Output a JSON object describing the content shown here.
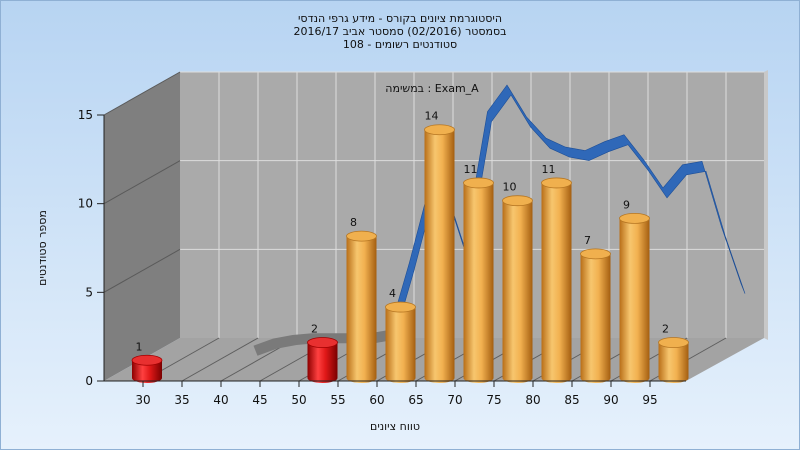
{
  "chart_data": {
    "type": "bar",
    "title_lines": [
      "היסטוגרמת ציונים בקורס - מידע גרפי הנדסי",
      "בסמסטר  (02/2016)  סמסטר אביב 2016/17",
      "סטודנטים רשומים - 108"
    ],
    "subtitle": "במשימה : Exam_A",
    "xlabel": "טווח ציונים",
    "ylabel": "מספר סטודנטים",
    "ylim": [
      0,
      15
    ],
    "yticks": [
      0,
      5,
      10,
      15
    ],
    "xticks": [
      30,
      35,
      40,
      45,
      50,
      55,
      60,
      65,
      70,
      75,
      80,
      85,
      90,
      95
    ],
    "bars": [
      {
        "x": 30,
        "value": 1,
        "label": "1",
        "color": "#d01818"
      },
      {
        "x": 52.5,
        "value": 2,
        "label": "2",
        "color": "#d01818"
      },
      {
        "x": 57.5,
        "value": 8,
        "label": "8",
        "color": "#e8a040"
      },
      {
        "x": 62.5,
        "value": 4,
        "label": "4",
        "color": "#e8a040"
      },
      {
        "x": 67.5,
        "value": 14,
        "label": "14",
        "color": "#e8a040"
      },
      {
        "x": 72.5,
        "value": 11,
        "label": "11",
        "color": "#e8a040"
      },
      {
        "x": 77.5,
        "value": 10,
        "label": "10",
        "color": "#e8a040"
      },
      {
        "x": 82.5,
        "value": 11,
        "label": "11",
        "color": "#e8a040"
      },
      {
        "x": 87.5,
        "value": 7,
        "label": "7",
        "color": "#e8a040"
      },
      {
        "x": 92.5,
        "value": 9,
        "label": "9",
        "color": "#e8a040"
      },
      {
        "x": 97.5,
        "value": 2,
        "label": "2",
        "color": "#e8a040"
      }
    ],
    "ribbon": {
      "color": "#2f68b8",
      "shadow_color": "#7a7a7a",
      "points": [
        {
          "x": 37.5,
          "value": 0.3
        },
        {
          "x": 40,
          "value": 0.7
        },
        {
          "x": 42.5,
          "value": 0.9
        },
        {
          "x": 45,
          "value": 1
        },
        {
          "x": 47.5,
          "value": 1
        },
        {
          "x": 50,
          "value": 1
        },
        {
          "x": 52.5,
          "value": 1
        },
        {
          "x": 55,
          "value": 1.2
        },
        {
          "x": 57.5,
          "value": 5
        },
        {
          "x": 60,
          "value": 9.2
        },
        {
          "x": 62.5,
          "value": 8.5
        },
        {
          "x": 64.5,
          "value": 5.8
        },
        {
          "x": 67.5,
          "value": 13.5
        },
        {
          "x": 70,
          "value": 15
        },
        {
          "x": 72.5,
          "value": 13.2
        },
        {
          "x": 75,
          "value": 12
        },
        {
          "x": 77.5,
          "value": 11.5
        },
        {
          "x": 80,
          "value": 11.3
        },
        {
          "x": 82.5,
          "value": 11.8
        },
        {
          "x": 85,
          "value": 12.2
        },
        {
          "x": 87.5,
          "value": 10.8
        },
        {
          "x": 90,
          "value": 9.2
        },
        {
          "x": 92.5,
          "value": 10.5
        },
        {
          "x": 95,
          "value": 10.7
        },
        {
          "x": 97.5,
          "value": 7
        },
        {
          "x": 100,
          "value": 3.8
        }
      ]
    },
    "colors": {
      "background_top": "#b7d4f2",
      "background_bottom": "#e6f1fc",
      "wall": "#aaaaaa",
      "side_wall": "#7f7f7f",
      "floor": "#a3a3a3",
      "grid": "#dddddd"
    }
  }
}
